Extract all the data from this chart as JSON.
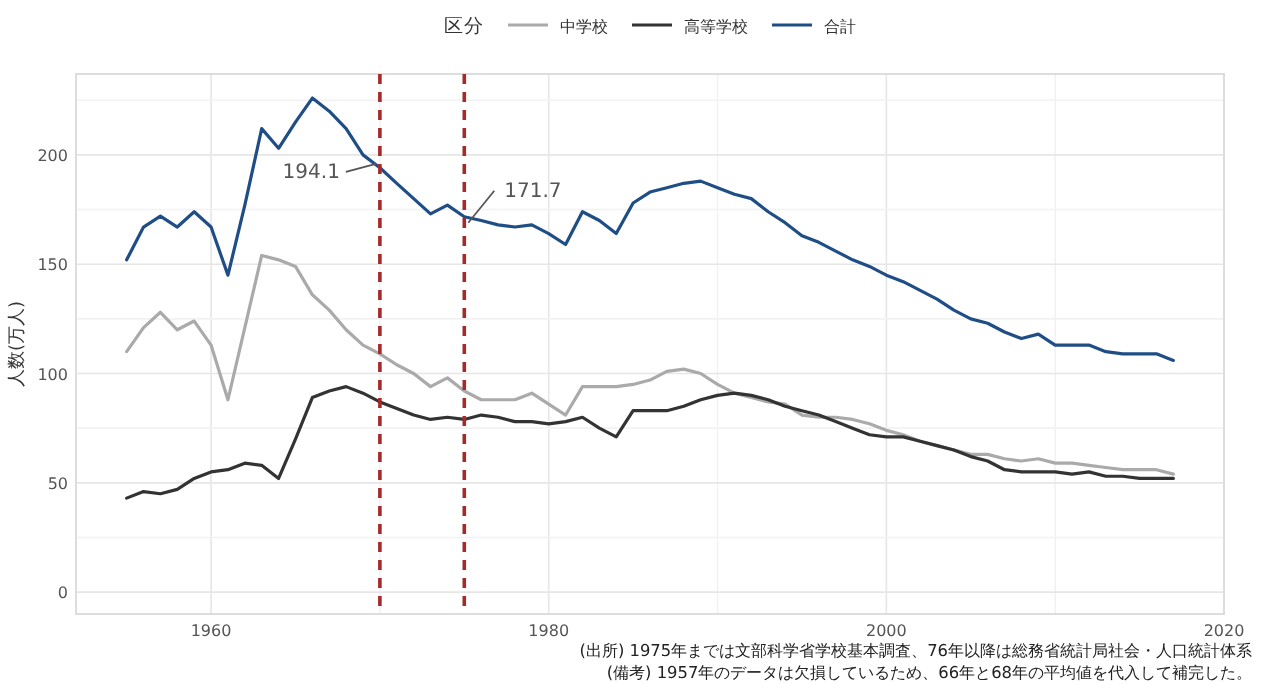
{
  "chart_data": {
    "type": "line",
    "ylabel": "人数(万人)",
    "legend_title": "区分",
    "legend": "top",
    "grid": true,
    "marker": "none",
    "line_style": "solid",
    "xlim": [
      1952,
      2020
    ],
    "ylim": [
      -10,
      237
    ],
    "xticks": [
      1960,
      {
        "value": 1970,
        "label": null
      },
      1980,
      {
        "value": 1990,
        "label": null
      },
      2000,
      {
        "value": 2010,
        "label": null
      },
      2020
    ],
    "yticks": [
      0,
      {
        "value": 25,
        "label": null
      },
      50,
      {
        "value": 75,
        "label": null
      },
      100,
      {
        "value": 125,
        "label": null
      },
      150,
      {
        "value": 175,
        "label": null
      },
      200,
      {
        "value": 225,
        "label": null
      }
    ],
    "x": [
      1955,
      1956,
      1957,
      1958,
      1959,
      1960,
      1961,
      1962,
      1963,
      1964,
      1965,
      1966,
      1967,
      1968,
      1969,
      1970,
      1971,
      1972,
      1973,
      1974,
      1975,
      1976,
      1977,
      1978,
      1979,
      1980,
      1981,
      1982,
      1983,
      1984,
      1985,
      1986,
      1987,
      1988,
      1989,
      1990,
      1991,
      1992,
      1993,
      1994,
      1995,
      1996,
      1997,
      1998,
      1999,
      2000,
      2001,
      2002,
      2003,
      2004,
      2005,
      2006,
      2007,
      2008,
      2009,
      2010,
      2011,
      2012,
      2013,
      2014,
      2015,
      2016,
      2017
    ],
    "series": [
      {
        "name": "中学校",
        "color": "#aaaaaa",
        "values": [
          110,
          121,
          128,
          120,
          124,
          113,
          88,
          121,
          154,
          152,
          149,
          136,
          129,
          120,
          113,
          109,
          104,
          100,
          94,
          98,
          92,
          88,
          88,
          88,
          91,
          86,
          81,
          94,
          94,
          94,
          95,
          97,
          101,
          102,
          100,
          95,
          91,
          89,
          87,
          86,
          81,
          80,
          80,
          79,
          77,
          74,
          72,
          69,
          67,
          65,
          63,
          63,
          61,
          60,
          61,
          59,
          59,
          58,
          57,
          56,
          56,
          56,
          54
        ]
      },
      {
        "name": "高等学校",
        "color": "#333333",
        "values": [
          43,
          46,
          45,
          47,
          52,
          55,
          56,
          59,
          58,
          52,
          70,
          89,
          92,
          94,
          91,
          87,
          84,
          81,
          79,
          80,
          79,
          81,
          80,
          78,
          78,
          77,
          78,
          80,
          75,
          71,
          83,
          83,
          83,
          85,
          88,
          90,
          91,
          90,
          88,
          85,
          83,
          81,
          78,
          75,
          72,
          71,
          71,
          69,
          67,
          65,
          62,
          60,
          56,
          55,
          55,
          55,
          54,
          55,
          53,
          53,
          52,
          52,
          52
        ]
      },
      {
        "name": "合計",
        "color": "#1f4e86",
        "values": [
          152,
          167,
          172,
          167,
          174,
          167,
          145,
          177,
          212,
          203,
          215,
          226,
          220,
          212,
          200,
          194.1,
          187,
          180,
          173,
          177,
          171.7,
          170,
          168,
          167,
          168,
          164,
          159,
          174,
          170,
          164,
          178,
          183,
          185,
          187,
          188,
          185,
          182,
          180,
          174,
          169,
          163,
          160,
          156,
          152,
          149,
          145,
          142,
          138,
          134,
          129,
          125,
          123,
          119,
          116,
          118,
          113,
          113,
          113,
          110,
          109,
          109,
          109,
          106
        ]
      }
    ],
    "ref_lines": [
      {
        "axis": "x",
        "value": 1970,
        "color": "#a52a2a",
        "line_style": "dashed"
      },
      {
        "axis": "x",
        "value": 1975,
        "color": "#a52a2a",
        "line_style": "dashed"
      }
    ],
    "annotations": [
      {
        "text": "194.1",
        "x": 1970,
        "y": 194.1
      },
      {
        "text": "171.7",
        "x": 1975,
        "y": 171.7
      },
      "(出所) 1975年までは文部科学省学校基本調査、76年以降は総務省統計局社会・人口統計体系",
      "(備考) 1957年のデータは欠損しているため、66年と68年の平均値を代入して補完した。"
    ]
  }
}
